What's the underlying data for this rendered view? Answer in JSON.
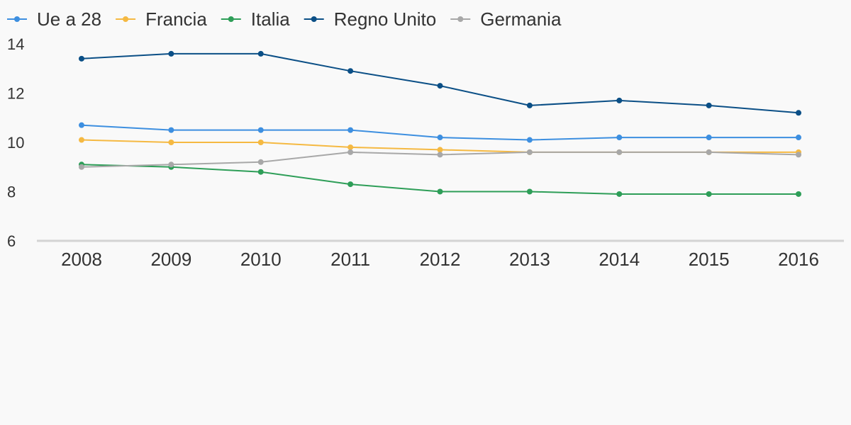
{
  "chart_data": {
    "type": "line",
    "categories": [
      "2008",
      "2009",
      "2010",
      "2011",
      "2012",
      "2013",
      "2014",
      "2015",
      "2016"
    ],
    "series": [
      {
        "name": "Ue a 28",
        "color": "#3d8fe0",
        "values": [
          10.7,
          10.5,
          10.5,
          10.5,
          10.2,
          10.1,
          10.2,
          10.2,
          10.2
        ]
      },
      {
        "name": "Francia",
        "color": "#f5b942",
        "values": [
          10.1,
          10.0,
          10.0,
          9.8,
          9.7,
          9.6,
          9.6,
          9.6,
          9.6
        ]
      },
      {
        "name": "Italia",
        "color": "#2e9e58",
        "values": [
          9.1,
          9.0,
          8.8,
          8.3,
          8.0,
          8.0,
          7.9,
          7.9,
          7.9
        ]
      },
      {
        "name": "Regno Unito",
        "color": "#0b4f86",
        "values": [
          13.4,
          13.6,
          13.6,
          12.9,
          12.3,
          11.5,
          11.7,
          11.5,
          11.2
        ]
      },
      {
        "name": "Germania",
        "color": "#a8a8a8",
        "values": [
          9.0,
          9.1,
          9.2,
          9.6,
          9.5,
          9.6,
          9.6,
          9.6,
          9.5
        ]
      }
    ],
    "yticks": [
      "6",
      "8",
      "10",
      "12",
      "14"
    ],
    "ylim": [
      6,
      14
    ],
    "legend_position": "top-left",
    "grid": false,
    "title": "",
    "xlabel": "",
    "ylabel": ""
  }
}
